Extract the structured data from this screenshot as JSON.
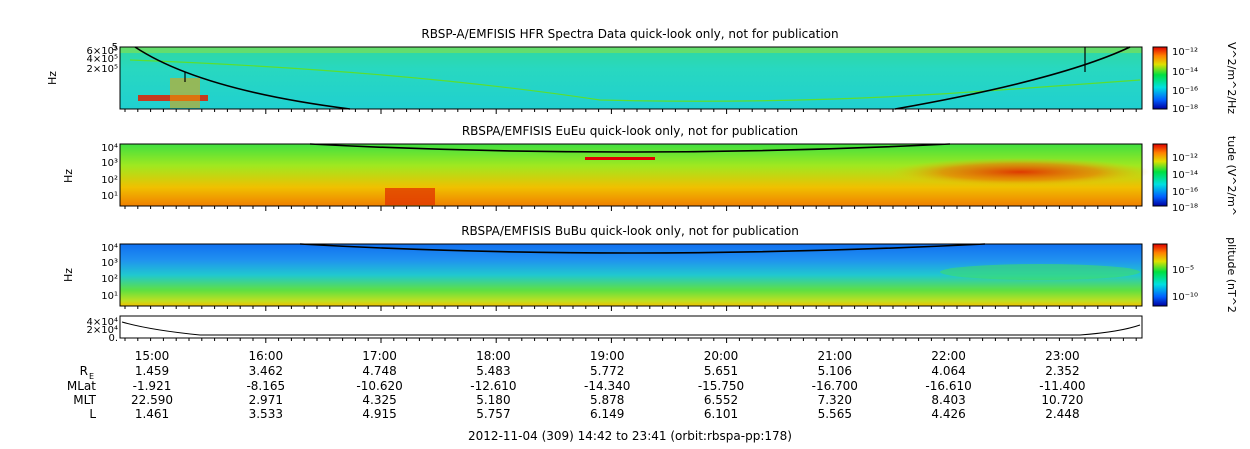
{
  "chart_data": [
    {
      "type": "heatmap",
      "title": "RBSP-A/EMFISIS  HFR Spectra Data quick-look only, not for publication",
      "ylabel": "Hz",
      "colorbar_label": "V^2/m^2/Hz",
      "ytick_labels": [
        "6×10⁵",
        "4×10⁵",
        "2×10⁵"
      ],
      "ytick_top": "5",
      "colorbar_ticks": [
        "10⁻¹²",
        "10⁻¹⁴",
        "10⁻¹⁶",
        "10⁻¹⁸"
      ],
      "colormap": [
        "#0000a0",
        "#0060ff",
        "#00e0e0",
        "#00e040",
        "#e0e000",
        "#ff8000",
        "#e00000"
      ],
      "overlay_line": "black curve (electron cyclotron / plasma frequency)"
    },
    {
      "type": "heatmap",
      "title": "RBSPA/EMFISIS  EuEu quick-look only, not for publication",
      "ylabel": "Hz",
      "colorbar_label": "tude (V^2/m^",
      "ytick_labels": [
        "10⁴",
        "10³",
        "10²",
        "10¹"
      ],
      "colorbar_ticks": [
        "10⁻¹²",
        "10⁻¹⁴",
        "10⁻¹⁶",
        "10⁻¹⁸"
      ],
      "overlay_line": "black curve (electron cyclotron frequency)"
    },
    {
      "type": "heatmap",
      "title": "RBSPA/EMFISIS  BuBu quick-look only, not for publication",
      "ylabel": "Hz",
      "colorbar_label": "plitude (nT^2",
      "ytick_labels": [
        "10⁴",
        "10³",
        "10²",
        "10¹"
      ],
      "colorbar_ticks": [
        "10⁻⁵",
        "10⁻¹⁰"
      ],
      "overlay_line": "black curve (electron cyclotron frequency)"
    },
    {
      "type": "line",
      "ytick_labels": [
        "4×10⁴",
        "2×10⁴",
        "0."
      ],
      "description_series": "Magnetic field magnitude (curve)"
    }
  ],
  "time_axis": {
    "ticks": [
      "15:00",
      "16:00",
      "17:00",
      "18:00",
      "19:00",
      "20:00",
      "21:00",
      "22:00",
      "23:00"
    ]
  },
  "ephemeris": {
    "rows": [
      {
        "label": "R",
        "label_sub": "E",
        "values": [
          "1.459",
          "3.462",
          "4.748",
          "5.483",
          "5.772",
          "5.651",
          "5.106",
          "4.064",
          "2.352"
        ]
      },
      {
        "label": "MLat",
        "values": [
          "-1.921",
          "-8.165",
          "-10.620",
          "-12.610",
          "-14.340",
          "-15.750",
          "-16.700",
          "-16.610",
          "-11.400"
        ]
      },
      {
        "label": "MLT",
        "values": [
          "22.590",
          "2.971",
          "4.325",
          "5.180",
          "5.878",
          "6.552",
          "7.320",
          "8.403",
          "10.720"
        ]
      },
      {
        "label": "L",
        "values": [
          "1.461",
          "3.533",
          "4.915",
          "5.757",
          "6.149",
          "6.101",
          "5.565",
          "4.426",
          "2.448"
        ]
      }
    ]
  },
  "footer": "2012-11-04 (309) 14:42 to 23:41 (orbit:rbspa-pp:178)"
}
